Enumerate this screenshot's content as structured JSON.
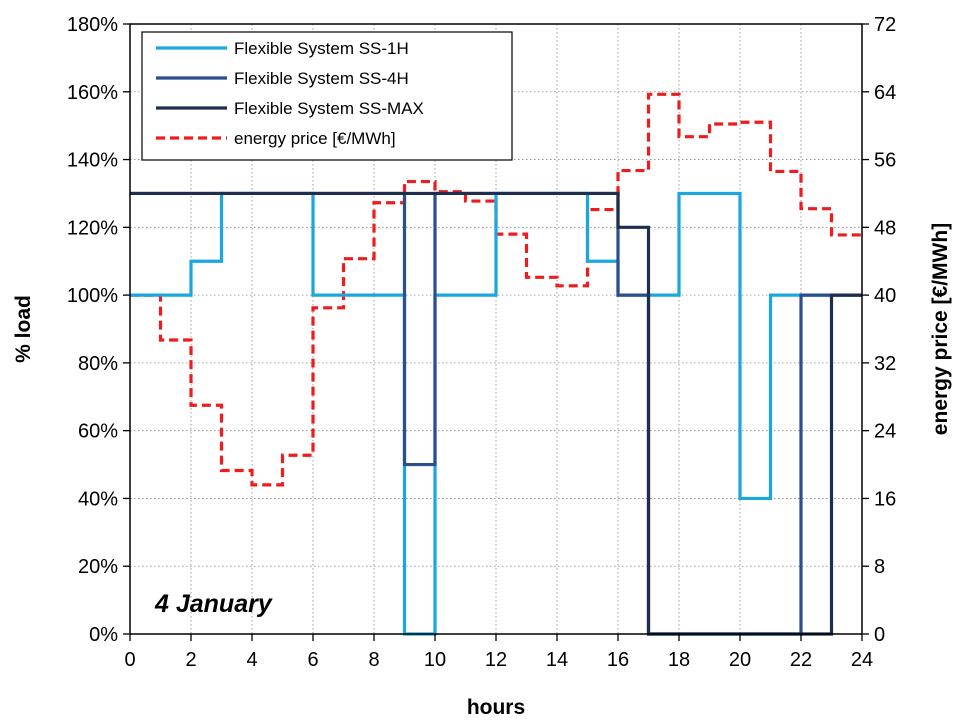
{
  "chart_data": {
    "type": "line",
    "step": true,
    "xlabel": "hours",
    "ylabel": "% load",
    "y2label": "energy price [€/MWh]",
    "annotation": "4 January",
    "xlim": [
      0,
      24
    ],
    "ylim": [
      0,
      180
    ],
    "y2lim": [
      0,
      72
    ],
    "xticks": [
      0,
      2,
      4,
      6,
      8,
      10,
      12,
      14,
      16,
      18,
      20,
      22,
      24
    ],
    "yticks": [
      0,
      20,
      40,
      60,
      80,
      100,
      120,
      140,
      160,
      180
    ],
    "yticklabels": [
      "0%",
      "20%",
      "40%",
      "60%",
      "80%",
      "100%",
      "120%",
      "140%",
      "160%",
      "180%"
    ],
    "y2ticks": [
      0,
      8,
      16,
      24,
      32,
      40,
      48,
      56,
      64,
      72
    ],
    "y2ticklabels": [
      "0",
      "8",
      "16",
      "24",
      "32",
      "40",
      "48",
      "56",
      "64",
      "72"
    ],
    "grid": "dotted",
    "legend_position": "top-left",
    "hours": [
      0,
      1,
      2,
      3,
      4,
      5,
      6,
      7,
      8,
      9,
      10,
      11,
      12,
      13,
      14,
      15,
      16,
      17,
      18,
      19,
      20,
      21,
      22,
      23
    ],
    "series": [
      {
        "name": "Flexible System SS-1H",
        "axis": "left",
        "color": "#1aa7e0",
        "style": "solid",
        "values": [
          100,
          100,
          110,
          130,
          130,
          130,
          100,
          100,
          100,
          0,
          100,
          100,
          130,
          130,
          130,
          110,
          100,
          100,
          130,
          130,
          40,
          100,
          100,
          100
        ]
      },
      {
        "name": "Flexible System SS-4H",
        "axis": "left",
        "color": "#2a4f8c",
        "style": "solid",
        "values": [
          130,
          130,
          130,
          130,
          130,
          130,
          130,
          130,
          130,
          50,
          130,
          130,
          130,
          130,
          130,
          130,
          100,
          0,
          0,
          0,
          0,
          0,
          100,
          100
        ]
      },
      {
        "name": "Flexible System SS-MAX",
        "axis": "left",
        "color": "#1e2e4e",
        "style": "solid",
        "values": [
          130,
          130,
          130,
          130,
          130,
          130,
          130,
          130,
          130,
          130,
          130,
          130,
          130,
          130,
          130,
          130,
          120,
          0,
          0,
          0,
          0,
          0,
          0,
          100
        ]
      },
      {
        "name": "energy price [€/MWh]",
        "axis": "right",
        "color": "#ee1c1c",
        "style": "dashed",
        "values": [
          40,
          34.7,
          27,
          19.3,
          17.6,
          21.1,
          38.5,
          44.3,
          50.9,
          53.4,
          52.2,
          51.1,
          47.2,
          42.1,
          41.1,
          50.1,
          54.7,
          63.7,
          58.7,
          60.2,
          60.4,
          54.6,
          50.2,
          47.1
        ]
      }
    ]
  }
}
